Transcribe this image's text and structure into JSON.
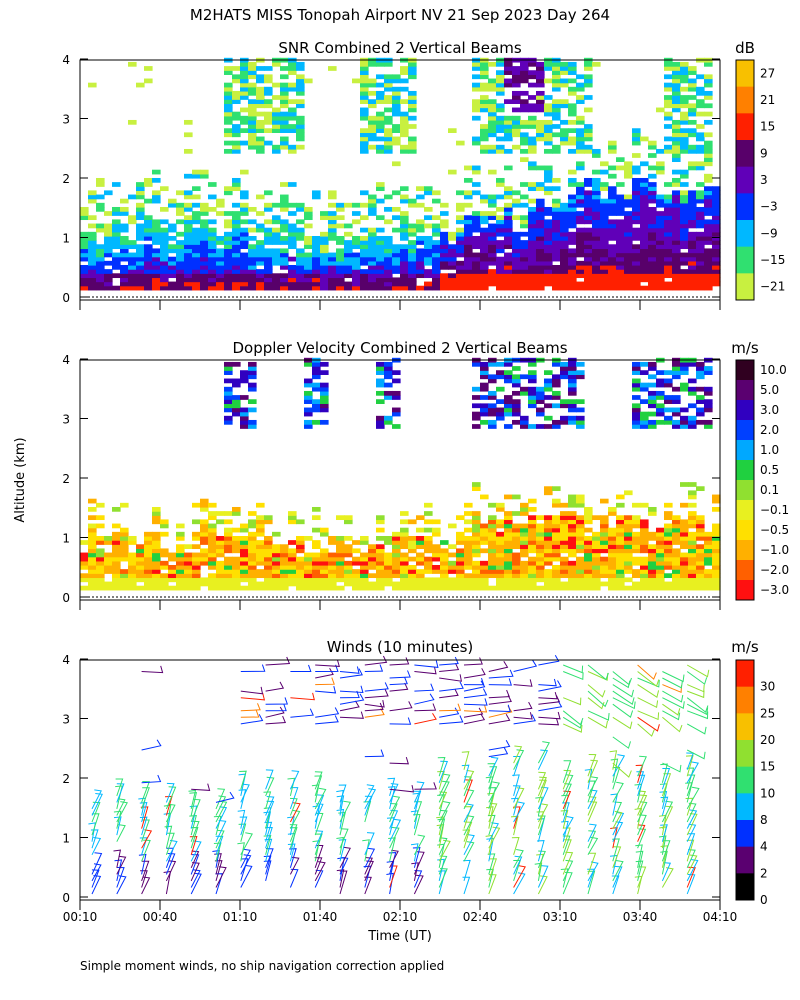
{
  "title": "M2HATS MISS Tonopah Airport NV  21 Sep 2023 Day 264",
  "footnote": "Simple moment winds, no ship navigation correction applied",
  "x_axis": {
    "label": "Time (UT)",
    "ticks": [
      "00:10",
      "00:40",
      "01:10",
      "01:40",
      "02:10",
      "02:40",
      "03:10",
      "03:40",
      "04:10"
    ]
  },
  "y_axis": {
    "label": "Altitude (km)",
    "ticks": [
      "0",
      "1",
      "2",
      "3",
      "4"
    ]
  },
  "chart_data": [
    {
      "type": "heatmap",
      "title": "SNR Combined 2 Vertical Beams",
      "colorbar_unit": "dB",
      "colorbar_labels": [
        "27",
        "21",
        "15",
        "9",
        "3",
        "−3",
        "−9",
        "−15",
        "−21"
      ],
      "colorbar_colors": [
        "#f8c000",
        "#ff8000",
        "#ff2000",
        "#58006a",
        "#6000b8",
        "#0030ff",
        "#00b8ff",
        "#30e070",
        "#c8f040"
      ],
      "x_range_hours": [
        0.1667,
        4.1667
      ],
      "y_range_km": [
        0,
        4
      ]
    },
    {
      "type": "heatmap",
      "title": "Doppler Velocity Combined 2 Vertical Beams",
      "colorbar_unit": "m/s",
      "colorbar_labels": [
        "10.0",
        "5.0",
        "3.0",
        "2.0",
        "1.0",
        "0.5",
        "0.1",
        "−0.1",
        "−0.5",
        "−1.0",
        "−2.0",
        "−3.0"
      ],
      "colorbar_colors": [
        "#300020",
        "#5a0070",
        "#3000c0",
        "#0040ff",
        "#00a8ff",
        "#20d040",
        "#90e030",
        "#e8f020",
        "#ffe000",
        "#ffb000",
        "#ff6000",
        "#ff1010"
      ],
      "x_range_hours": [
        0.1667,
        4.1667
      ],
      "y_range_km": [
        0,
        4
      ]
    },
    {
      "type": "wind_barbs",
      "title": "Winds (10 minutes)",
      "colorbar_unit": "m/s",
      "colorbar_labels": [
        "30",
        "25",
        "20",
        "15",
        "10",
        "8",
        "4",
        "2",
        "0"
      ],
      "colorbar_colors": [
        "#ff2000",
        "#ff8000",
        "#f8c000",
        "#90e030",
        "#30e070",
        "#00b8ff",
        "#0030ff",
        "#5a0070",
        "#000000"
      ],
      "x_range_hours": [
        0.1667,
        4.1667
      ],
      "y_range_km": [
        0,
        4
      ]
    }
  ]
}
